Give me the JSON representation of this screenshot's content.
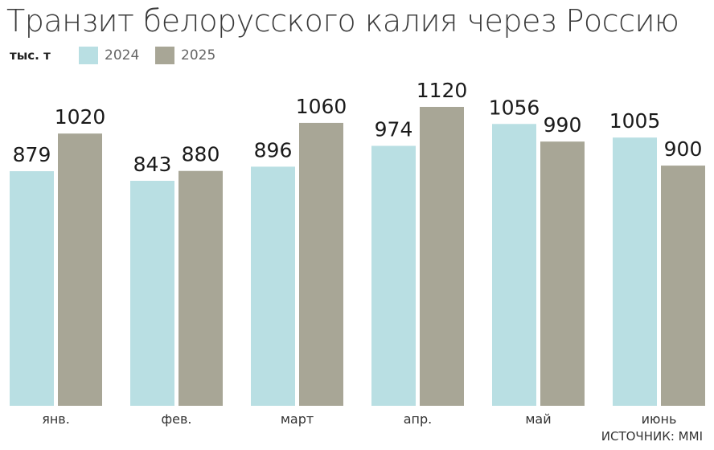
{
  "title": "Транзит белорусского калия через Россию",
  "unit": "тыс. т",
  "source": "ИСТОЧНИК: MMI",
  "colors": {
    "2024": "#b9dfe3",
    "2025": "#a8a696"
  },
  "chart_data": {
    "type": "bar",
    "title": "Транзит белорусского калия через Россию",
    "ylabel": "тыс. т",
    "xlabel": "",
    "categories": [
      "янв.",
      "фев.",
      "март",
      "апр.",
      "май",
      "июнь"
    ],
    "series": [
      {
        "name": "2024",
        "values": [
          879,
          843,
          896,
          974,
          1056,
          1005
        ]
      },
      {
        "name": "2025",
        "values": [
          1020,
          880,
          1060,
          1120,
          990,
          900
        ]
      }
    ],
    "ylim": [
      0,
      1120
    ],
    "grid": false,
    "legend": "top-left"
  }
}
